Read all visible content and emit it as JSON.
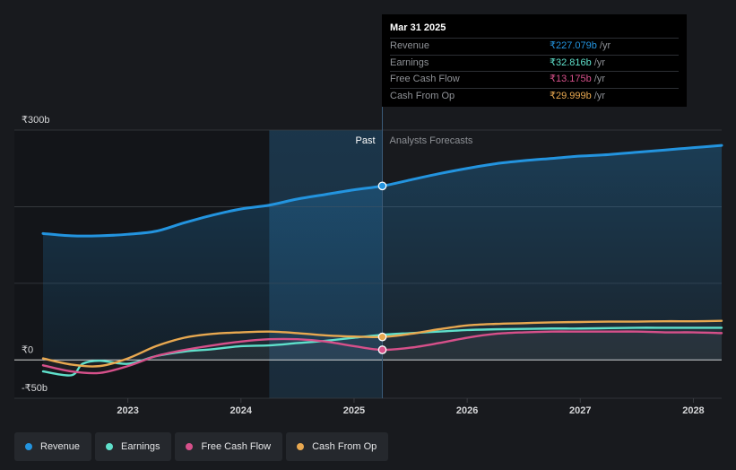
{
  "chart_data": {
    "type": "line",
    "currency_unit": "₹ billions",
    "y_ticks": [
      {
        "value": 300,
        "label": "₹300b"
      },
      {
        "value": 0,
        "label": "₹0"
      },
      {
        "value": -50,
        "label": "-₹50b"
      }
    ],
    "ylim": [
      -50,
      300
    ],
    "xlim": [
      2022.25,
      2028.25
    ],
    "x_ticks": [
      {
        "value": 2023,
        "label": "2023"
      },
      {
        "value": 2024,
        "label": "2024"
      },
      {
        "value": 2025,
        "label": "2025"
      },
      {
        "value": 2026,
        "label": "2026"
      },
      {
        "value": 2027,
        "label": "2027"
      },
      {
        "value": 2028,
        "label": "2028"
      }
    ],
    "past_label": "Past",
    "forecast_label": "Analysts Forecasts",
    "divider_x": 2025.25,
    "highlight_start_x": 2024.25,
    "series": [
      {
        "name": "Revenue",
        "color": "#2394df",
        "fill": true,
        "points": [
          [
            2022.25,
            165
          ],
          [
            2022.5,
            162
          ],
          [
            2022.75,
            162
          ],
          [
            2023.0,
            164
          ],
          [
            2023.25,
            168
          ],
          [
            2023.5,
            179
          ],
          [
            2023.75,
            189
          ],
          [
            2024.0,
            197
          ],
          [
            2024.25,
            202
          ],
          [
            2024.5,
            210
          ],
          [
            2024.75,
            216
          ],
          [
            2025.0,
            222
          ],
          [
            2025.25,
            227
          ],
          [
            2025.5,
            235
          ],
          [
            2025.75,
            243
          ],
          [
            2026.0,
            250
          ],
          [
            2026.25,
            256
          ],
          [
            2026.5,
            260
          ],
          [
            2026.75,
            263
          ],
          [
            2027.0,
            266
          ],
          [
            2027.25,
            268
          ],
          [
            2027.5,
            271
          ],
          [
            2027.75,
            274
          ],
          [
            2028.0,
            277
          ],
          [
            2028.25,
            280
          ]
        ]
      },
      {
        "name": "Earnings",
        "color": "#5fe0cb",
        "fill": false,
        "points": [
          [
            2022.25,
            -15
          ],
          [
            2022.5,
            -20
          ],
          [
            2022.6,
            -5
          ],
          [
            2022.75,
            -1
          ],
          [
            2023.0,
            -5
          ],
          [
            2023.25,
            5
          ],
          [
            2023.5,
            11
          ],
          [
            2023.75,
            14
          ],
          [
            2024.0,
            18
          ],
          [
            2024.25,
            19
          ],
          [
            2024.5,
            22
          ],
          [
            2024.75,
            25
          ],
          [
            2025.0,
            29
          ],
          [
            2025.25,
            32.8
          ],
          [
            2025.5,
            35
          ],
          [
            2025.75,
            37
          ],
          [
            2026.0,
            39
          ],
          [
            2026.25,
            40
          ],
          [
            2026.5,
            40.5
          ],
          [
            2026.75,
            41
          ],
          [
            2027.0,
            41
          ],
          [
            2027.25,
            41.5
          ],
          [
            2027.5,
            42
          ],
          [
            2027.75,
            42
          ],
          [
            2028.0,
            42
          ],
          [
            2028.25,
            42
          ]
        ]
      },
      {
        "name": "Free Cash Flow",
        "color": "#d6508a",
        "fill": false,
        "points": [
          [
            2022.25,
            -7
          ],
          [
            2022.5,
            -15
          ],
          [
            2022.75,
            -17
          ],
          [
            2023.0,
            -8
          ],
          [
            2023.25,
            5
          ],
          [
            2023.5,
            13
          ],
          [
            2023.75,
            19
          ],
          [
            2024.0,
            24
          ],
          [
            2024.25,
            27
          ],
          [
            2024.5,
            27
          ],
          [
            2024.75,
            24
          ],
          [
            2025.0,
            18
          ],
          [
            2025.25,
            13.2
          ],
          [
            2025.5,
            16
          ],
          [
            2025.75,
            22
          ],
          [
            2026.0,
            29
          ],
          [
            2026.25,
            34
          ],
          [
            2026.5,
            36
          ],
          [
            2026.75,
            37
          ],
          [
            2027.0,
            37
          ],
          [
            2027.25,
            37
          ],
          [
            2027.5,
            37
          ],
          [
            2027.75,
            36
          ],
          [
            2028.0,
            36
          ],
          [
            2028.25,
            35
          ]
        ]
      },
      {
        "name": "Cash From Op",
        "color": "#e8a850",
        "fill": false,
        "points": [
          [
            2022.25,
            2
          ],
          [
            2022.5,
            -6
          ],
          [
            2022.75,
            -8
          ],
          [
            2023.0,
            2
          ],
          [
            2023.25,
            18
          ],
          [
            2023.5,
            29
          ],
          [
            2023.75,
            34
          ],
          [
            2024.0,
            36
          ],
          [
            2024.25,
            37
          ],
          [
            2024.5,
            35
          ],
          [
            2024.75,
            32
          ],
          [
            2025.0,
            30.5
          ],
          [
            2025.25,
            30
          ],
          [
            2025.5,
            34
          ],
          [
            2025.75,
            40
          ],
          [
            2026.0,
            45
          ],
          [
            2026.25,
            47
          ],
          [
            2026.5,
            48
          ],
          [
            2026.75,
            49
          ],
          [
            2027.0,
            49.5
          ],
          [
            2027.25,
            50
          ],
          [
            2027.5,
            50
          ],
          [
            2027.75,
            50.5
          ],
          [
            2028.0,
            50.5
          ],
          [
            2028.25,
            51
          ]
        ]
      }
    ],
    "highlight_points": [
      {
        "series": "Revenue",
        "x": 2025.25,
        "y": 227.079
      },
      {
        "series": "Cash From Op",
        "x": 2025.25,
        "y": 29.999
      },
      {
        "series": "Free Cash Flow",
        "x": 2025.25,
        "y": 13.175
      }
    ]
  },
  "tooltip": {
    "date": "Mar 31 2025",
    "rows": [
      {
        "name": "Revenue",
        "value": "₹227.079b",
        "unit": "/yr",
        "color": "#2394df"
      },
      {
        "name": "Earnings",
        "value": "₹32.816b",
        "unit": "/yr",
        "color": "#5fe0cb"
      },
      {
        "name": "Free Cash Flow",
        "value": "₹13.175b",
        "unit": "/yr",
        "color": "#d6508a"
      },
      {
        "name": "Cash From Op",
        "value": "₹29.999b",
        "unit": "/yr",
        "color": "#e8a850"
      }
    ]
  },
  "legend": [
    {
      "label": "Revenue",
      "color": "#2394df"
    },
    {
      "label": "Earnings",
      "color": "#5fe0cb"
    },
    {
      "label": "Free Cash Flow",
      "color": "#d6508a"
    },
    {
      "label": "Cash From Op",
      "color": "#e8a850"
    }
  ]
}
